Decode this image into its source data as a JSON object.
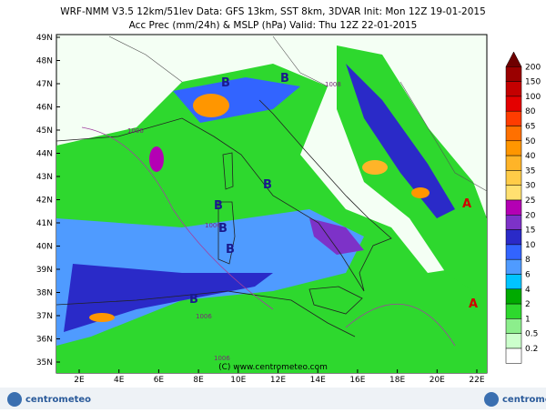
{
  "header": {
    "line1": "WRF-NMM V3.5 12km/51lev  Data: GFS 13km, SST 8km, 3DVAR  Init: Mon 12Z 19-01-2015",
    "line2": "Acc Prec (mm/24h) & MSLP (hPa)  Valid: Thu 12Z 22-01-2015"
  },
  "map": {
    "lat_labels": [
      "49N",
      "48N",
      "47N",
      "46N",
      "45N",
      "44N",
      "43N",
      "42N",
      "41N",
      "40N",
      "39N",
      "38N",
      "37N",
      "36N",
      "35N"
    ],
    "lon_labels": [
      "2E",
      "4E",
      "6E",
      "8E",
      "10E",
      "12E",
      "14E",
      "16E",
      "18E",
      "20E",
      "22E"
    ],
    "pressure_labels": [
      "1008",
      "1006",
      "1006",
      "1006",
      "1006"
    ],
    "centers": [
      "B",
      "B",
      "B",
      "B",
      "B",
      "B",
      "B",
      "A",
      "A"
    ],
    "copyright": "(C) www.centrometeo.com"
  },
  "legend": {
    "labels": [
      "200",
      "150",
      "100",
      "80",
      "65",
      "50",
      "40",
      "35",
      "30",
      "25",
      "20",
      "15",
      "10",
      "8",
      "6",
      "4",
      "2",
      "1",
      "0.5",
      "0.2"
    ],
    "colors": [
      "#6e0000",
      "#9a0000",
      "#c40000",
      "#e40000",
      "#ff3c00",
      "#ff7000",
      "#ff9600",
      "#ffb428",
      "#ffcc48",
      "#ffe070",
      "#b400b4",
      "#7d32c8",
      "#2a2ac8",
      "#3264ff",
      "#4f9bff",
      "#00c4ff",
      "#00aa00",
      "#2ed82e",
      "#8cee8c",
      "#ccffcc",
      "#ffffff"
    ]
  },
  "footer": {
    "logo_left": "centrometeo",
    "logo_right": "centrometeo"
  }
}
